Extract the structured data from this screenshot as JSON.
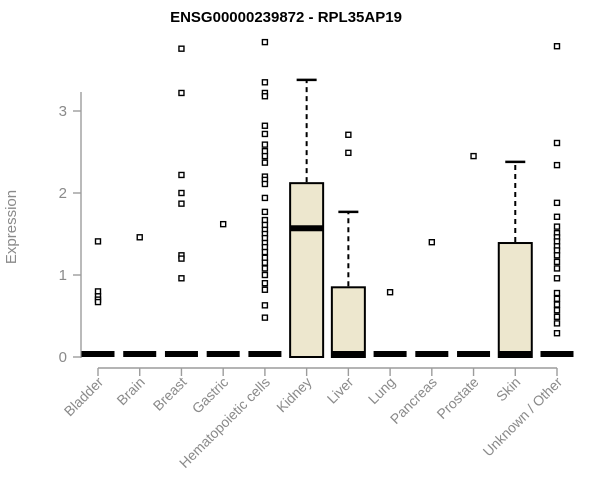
{
  "title": "ENSG00000239872 - RPL35AP19",
  "chart_data": {
    "type": "boxplot",
    "title": "ENSG00000239872 - RPL35AP19",
    "xlabel": "",
    "ylabel": "Expression",
    "ylim": [
      0,
      3.9
    ],
    "yticks": [
      0,
      1,
      2,
      3
    ],
    "grid": false,
    "legend": "none",
    "categories": [
      "Bladder",
      "Brain",
      "Breast",
      "Gastric",
      "Hematopoietic cells",
      "Kidney",
      "Liver",
      "Lung",
      "Pancreas",
      "Prostate",
      "Skin",
      "Unknown / Other"
    ],
    "series": [
      {
        "name": "Bladder",
        "q1": 0,
        "median": 0,
        "q3": 0,
        "whisker_low": 0,
        "whisker_high": 0,
        "outliers": [
          1.41,
          0.8,
          0.74,
          0.7,
          0.67
        ]
      },
      {
        "name": "Brain",
        "q1": 0,
        "median": 0,
        "q3": 0,
        "whisker_low": 0,
        "whisker_high": 0,
        "outliers": [
          1.46
        ]
      },
      {
        "name": "Breast",
        "q1": 0,
        "median": 0,
        "q3": 0,
        "whisker_low": 0,
        "whisker_high": 0,
        "outliers": [
          3.76,
          3.22,
          2.22,
          2.0,
          1.87,
          1.24,
          1.2,
          0.96
        ]
      },
      {
        "name": "Gastric",
        "q1": 0,
        "median": 0,
        "q3": 0,
        "whisker_low": 0,
        "whisker_high": 0,
        "outliers": [
          1.62
        ]
      },
      {
        "name": "Hematopoietic cells",
        "q1": 0,
        "median": 0,
        "q3": 0,
        "whisker_low": 0,
        "whisker_high": 0,
        "outliers": [
          3.84,
          3.35,
          3.22,
          3.18,
          2.82,
          2.72,
          2.59,
          2.51,
          2.45,
          2.37,
          2.2,
          2.16,
          2.11,
          1.94,
          1.77,
          1.67,
          1.61,
          1.55,
          1.5,
          1.45,
          1.39,
          1.34,
          1.28,
          1.21,
          1.15,
          1.08,
          1.0,
          0.9,
          0.82,
          0.63,
          0.48
        ]
      },
      {
        "name": "Kidney",
        "q1": 0,
        "median": 1.57,
        "q3": 2.12,
        "whisker_low": 0,
        "whisker_high": 3.38,
        "outliers": []
      },
      {
        "name": "Liver",
        "q1": 0,
        "median": 0,
        "q3": 0.85,
        "whisker_low": 0,
        "whisker_high": 1.77,
        "outliers": [
          2.71,
          2.49
        ]
      },
      {
        "name": "Lung",
        "q1": 0,
        "median": 0,
        "q3": 0,
        "whisker_low": 0,
        "whisker_high": 0,
        "outliers": [
          0.79
        ]
      },
      {
        "name": "Pancreas",
        "q1": 0,
        "median": 0,
        "q3": 0,
        "whisker_low": 0,
        "whisker_high": 0,
        "outliers": [
          1.4
        ]
      },
      {
        "name": "Prostate",
        "q1": 0,
        "median": 0,
        "q3": 0,
        "whisker_low": 0,
        "whisker_high": 0,
        "outliers": [
          2.45
        ]
      },
      {
        "name": "Skin",
        "q1": 0,
        "median": 0,
        "q3": 1.39,
        "whisker_low": 0,
        "whisker_high": 2.38,
        "outliers": []
      },
      {
        "name": "Unknown / Other",
        "q1": 0,
        "median": 0,
        "q3": 0,
        "whisker_low": 0,
        "whisker_high": 0,
        "outliers": [
          3.79,
          2.61,
          2.34,
          1.88,
          1.71,
          1.59,
          1.51,
          1.46,
          1.41,
          1.35,
          1.3,
          1.24,
          1.16,
          1.08,
          0.96,
          0.78,
          0.71,
          0.64,
          0.57,
          0.49,
          0.41,
          0.29
        ]
      }
    ],
    "colors": {
      "box_fill": "#EDE7CE",
      "box_stroke": "#000000",
      "median": "#000000",
      "whisker": "#000000",
      "outlier_fill": "#ffffff",
      "outlier_stroke": "#000000",
      "axis": "#9c9c9c",
      "tick_text": "#8a8a8a",
      "title": "#000000",
      "background": "#ffffff"
    }
  }
}
